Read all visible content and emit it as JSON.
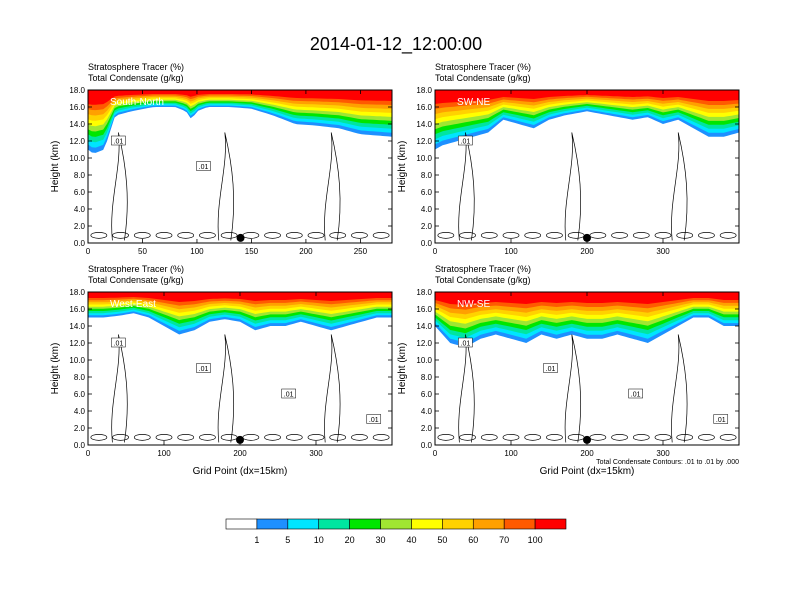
{
  "title": "2014-01-12_12:00:00",
  "colors": {
    "palette": [
      "#ffffff",
      "#1e90ff",
      "#00e5ff",
      "#00e5a0",
      "#00e600",
      "#a0e632",
      "#ffff00",
      "#ffd200",
      "#ffa000",
      "#ff5a00",
      "#ff0000"
    ],
    "contour": "#000000",
    "marker": "#000000"
  },
  "panel_texts": {
    "line1": "Stratosphere Tracer   (%)",
    "line2": "Total Condensate   (g/kg)",
    "ylabel": "Height (km)",
    "xlabel": "Grid Point (dx=15km)",
    "contour_note": "Total Condensate Contours: .01 to .01 by .000"
  },
  "colorbar": {
    "levels": [
      "1",
      "5",
      "10",
      "20",
      "30",
      "40",
      "50",
      "60",
      "70",
      "100"
    ]
  },
  "chart_data": [
    {
      "type": "heatmap",
      "section": "South-North",
      "ylim": [
        0,
        18
      ],
      "xlim": [
        0,
        279
      ],
      "yticks": [
        "0.0",
        "2.0",
        "4.0",
        "6.0",
        "8.0",
        "10.0",
        "12.0",
        "14.0",
        "16.0",
        "18.0"
      ],
      "xticks": [
        0,
        50,
        100,
        150,
        200,
        250
      ],
      "marker_x": 140,
      "contour_level": 0.01,
      "contour_labels": [
        ".01",
        ".01"
      ],
      "tracer_bottom_km": [
        [
          0,
          11
        ],
        [
          5,
          10.5
        ],
        [
          15,
          11
        ],
        [
          25,
          15
        ],
        [
          40,
          15.5
        ],
        [
          60,
          16
        ],
        [
          80,
          16
        ],
        [
          90,
          15.5
        ],
        [
          95,
          14.5
        ],
        [
          100,
          15.5
        ],
        [
          110,
          16
        ],
        [
          130,
          16
        ],
        [
          150,
          15.8
        ],
        [
          170,
          15
        ],
        [
          190,
          14
        ],
        [
          210,
          13.8
        ],
        [
          230,
          13.5
        ],
        [
          250,
          12.8
        ],
        [
          270,
          12.6
        ],
        [
          279,
          12.5
        ]
      ]
    },
    {
      "type": "heatmap",
      "section": "SW-NE",
      "ylim": [
        0,
        18
      ],
      "xlim": [
        0,
        400
      ],
      "yticks": [
        "0.0",
        "2.0",
        "4.0",
        "6.0",
        "8.0",
        "10.0",
        "12.0",
        "14.0",
        "16.0",
        "18.0"
      ],
      "xticks": [
        0,
        100,
        200,
        300
      ],
      "marker_x": 200,
      "contour_level": 0.01,
      "contour_labels": [
        ".01"
      ],
      "tracer_bottom_km": [
        [
          0,
          11
        ],
        [
          10,
          11.5
        ],
        [
          30,
          12
        ],
        [
          50,
          12.5
        ],
        [
          70,
          13
        ],
        [
          90,
          14.5
        ],
        [
          110,
          14
        ],
        [
          130,
          13.5
        ],
        [
          150,
          14.5
        ],
        [
          170,
          15
        ],
        [
          200,
          15.5
        ],
        [
          230,
          15
        ],
        [
          260,
          14.5
        ],
        [
          280,
          14.8
        ],
        [
          300,
          14
        ],
        [
          320,
          14.5
        ],
        [
          340,
          13.5
        ],
        [
          360,
          12.5
        ],
        [
          380,
          12.5
        ],
        [
          400,
          13
        ]
      ]
    },
    {
      "type": "heatmap",
      "section": "West-East",
      "ylim": [
        0,
        18
      ],
      "xlim": [
        0,
        400
      ],
      "yticks": [
        "0.0",
        "2.0",
        "4.0",
        "6.0",
        "8.0",
        "10.0",
        "12.0",
        "14.0",
        "16.0",
        "18.0"
      ],
      "xticks": [
        0,
        100,
        200,
        300
      ],
      "marker_x": 200,
      "contour_level": 0.01,
      "contour_labels": [
        ".01",
        ".01",
        ".01",
        ".01"
      ],
      "tracer_bottom_km": [
        [
          0,
          15
        ],
        [
          20,
          15
        ],
        [
          40,
          15.2
        ],
        [
          60,
          15.5
        ],
        [
          80,
          15
        ],
        [
          100,
          14
        ],
        [
          120,
          13
        ],
        [
          140,
          13.5
        ],
        [
          160,
          14.5
        ],
        [
          180,
          14.8
        ],
        [
          200,
          14.5
        ],
        [
          220,
          13.5
        ],
        [
          240,
          14
        ],
        [
          260,
          14
        ],
        [
          280,
          14.5
        ],
        [
          300,
          14
        ],
        [
          320,
          13.5
        ],
        [
          340,
          14
        ],
        [
          360,
          14.5
        ],
        [
          380,
          15
        ],
        [
          400,
          15
        ]
      ]
    },
    {
      "type": "heatmap",
      "section": "NW-SE",
      "ylim": [
        0,
        18
      ],
      "xlim": [
        0,
        400
      ],
      "yticks": [
        "0.0",
        "2.0",
        "4.0",
        "6.0",
        "8.0",
        "10.0",
        "12.0",
        "14.0",
        "16.0",
        "18.0"
      ],
      "xticks": [
        0,
        100,
        200,
        300
      ],
      "marker_x": 200,
      "contour_level": 0.01,
      "contour_labels": [
        ".01",
        ".01",
        ".01",
        ".01"
      ],
      "tracer_bottom_km": [
        [
          0,
          14
        ],
        [
          20,
          12
        ],
        [
          40,
          11.5
        ],
        [
          60,
          12.5
        ],
        [
          80,
          13
        ],
        [
          100,
          12.5
        ],
        [
          120,
          12
        ],
        [
          140,
          13
        ],
        [
          160,
          12.5
        ],
        [
          180,
          13
        ],
        [
          200,
          12.5
        ],
        [
          220,
          12.5
        ],
        [
          240,
          13
        ],
        [
          260,
          12.5
        ],
        [
          280,
          12
        ],
        [
          300,
          13
        ],
        [
          320,
          14
        ],
        [
          340,
          15
        ],
        [
          360,
          15
        ],
        [
          380,
          14
        ],
        [
          400,
          14
        ]
      ]
    }
  ]
}
